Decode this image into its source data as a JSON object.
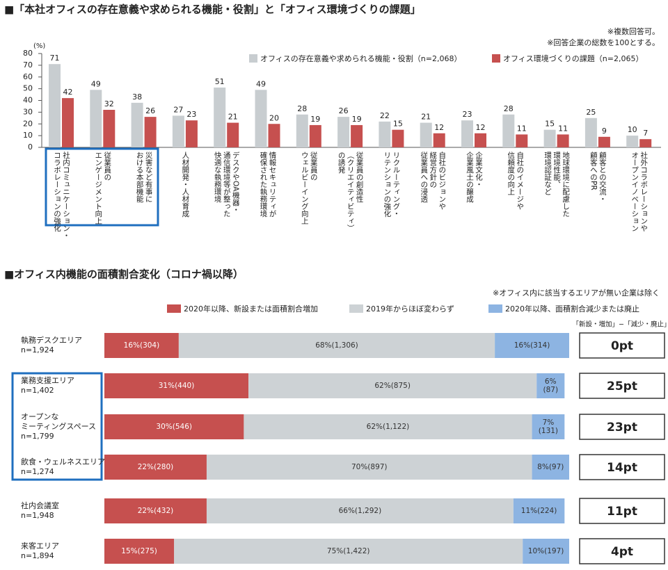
{
  "chart_data": [
    {
      "type": "bar",
      "title": "■「本社オフィスの存在意義や求められる機能・役割」と「オフィス環境づくりの課題」",
      "notes": [
        "※複数回答可。",
        "※回答企業の総数を100とする。"
      ],
      "y_label": "(%)",
      "categories": [
        "社内コミュニケーション・\nコラボレーションの強化",
        "従業員の\nエンゲージメント向上",
        "災害など有事に\nおける本部機能",
        "人材開発・人材育成",
        "デスクやOA機器・\n通信環境等が整った\n快適な執務環境",
        "情報セキュリティが\n確保された執務環境",
        "従業員の\nウェルビーイング向上",
        "従業員の創造性\n（クリエイティビティ）\nの誘発",
        "リクルーティング・\nリテンションの強化",
        "自社のビジョンや\n経営方針の\n従業員への浸透",
        "企業文化・\n企業風土の醸成",
        "自社のイメージや\n信頼度の向上",
        "地球環境に配慮した\n環境性能、\n環境認証など",
        "顧客との交流・\n顧客へのPR",
        "社外コラボレーションや\nオープンイノベーション"
      ],
      "series": [
        {
          "name": "オフィスの存在意義や求められる機能・役割（n=2,068）",
          "color": "#c8cdd0",
          "values": [
            71,
            49,
            38,
            27,
            51,
            49,
            28,
            26,
            22,
            21,
            23,
            28,
            15,
            25,
            10
          ]
        },
        {
          "name": "オフィス環境づくりの課題（n=2,065）",
          "color": "#c6504f",
          "values": [
            42,
            32,
            26,
            23,
            21,
            20,
            19,
            19,
            15,
            12,
            12,
            11,
            11,
            9,
            7
          ]
        }
      ],
      "ylim": [
        0,
        80
      ],
      "yticks": [
        0,
        10,
        20,
        30,
        40,
        50,
        60,
        70,
        80
      ],
      "legend": "top-right"
    },
    {
      "type": "stacked_bar",
      "title": "■オフィス内機能の面積割合変化（コロナ禍以降）",
      "note": "※オフィス内に該当するエリアが無い企業は除く",
      "categories": [
        "執務デスクエリア",
        "業務支援エリア",
        "オープンな\nミーティングスペース",
        "飲食・ウェルネスエリア",
        "社内会議室",
        "来客エリア"
      ],
      "sample_sizes": [
        "n=1,924",
        "n=1,402",
        "n=1,799",
        "n=1,274",
        "n=1,948",
        "n=1,894"
      ],
      "series": [
        {
          "name": "2020年以降、新設または面積割合増加",
          "color": "#c6504f",
          "values": [
            16,
            31,
            30,
            22,
            22,
            15
          ],
          "value_labels": [
            "16%(304)",
            "31%(440)",
            "30%(546)",
            "22%(280)",
            "22%(432)",
            "15%(275)"
          ]
        },
        {
          "name": "2019年からほぼ変わらず",
          "color": "#cdd2d5",
          "values": [
            68,
            62,
            62,
            70,
            66,
            75
          ],
          "value_labels": [
            "68%(1,306)",
            "62%(875)",
            "62%(1,122)",
            "70%(897)",
            "66%(1,292)",
            "75%(1,422)"
          ]
        },
        {
          "name": "2020年以降、面積割合減少または廃止",
          "color": "#8db4e2",
          "values": [
            16,
            6,
            7,
            8,
            11,
            10
          ],
          "value_labels": [
            "16%(314)",
            "6%\n(87)",
            "7%\n(131)",
            "8%(97)",
            "11%(224)",
            "10%(197)"
          ]
        }
      ],
      "xlim": [
        0,
        100
      ],
      "difference_header": "「新設・増加」−「減少・廃止」",
      "differences": [
        0,
        25,
        23,
        14,
        11,
        4
      ],
      "difference_labels": [
        "0pt",
        "25pt",
        "23pt",
        "14pt",
        "11pt",
        "4pt"
      ]
    }
  ]
}
